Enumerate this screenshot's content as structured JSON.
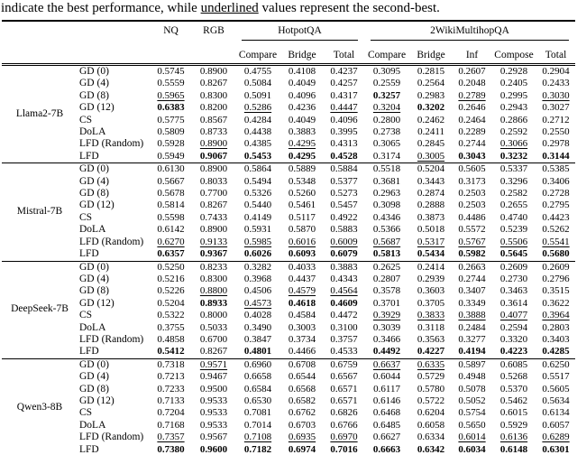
{
  "caption": {
    "before": "indicate the best performance, while ",
    "underlined": "underlined",
    "after": " values represent the second-best."
  },
  "table": {
    "top_headers": [
      {
        "label": "",
        "span": 2,
        "rule": false
      },
      {
        "label": "NQ",
        "span": 1,
        "rule": false
      },
      {
        "label": "RGB",
        "span": 1,
        "rule": false
      },
      {
        "label": "HotpotQA",
        "span": 3,
        "rule": true
      },
      {
        "label": "2WikiMultihopQA",
        "span": 5,
        "rule": true
      }
    ],
    "sub_headers": [
      "Compare",
      "Bridge",
      "Total",
      "Compare",
      "Bridge",
      "Inf",
      "Compose",
      "Total"
    ],
    "style_legend": {
      "b": "bold = best performance",
      "u": "underline = second-best"
    },
    "groups": [
      {
        "model": "Llama2-7B",
        "rows": [
          {
            "method": "GD (0)",
            "values": [
              "0.5745",
              "0.8900",
              "0.4755",
              "0.4108",
              "0.4237",
              "0.3095",
              "0.2815",
              "0.2607",
              "0.2928",
              "0.2904"
            ],
            "styles": [
              "",
              "",
              "",
              "",
              "",
              "",
              "",
              "",
              "",
              ""
            ]
          },
          {
            "method": "GD (4)",
            "values": [
              "0.5559",
              "0.8267",
              "0.5084",
              "0.4049",
              "0.4257",
              "0.2559",
              "0.2564",
              "0.2048",
              "0.2405",
              "0.2433"
            ],
            "styles": [
              "",
              "",
              "",
              "",
              "",
              "",
              "",
              "",
              "",
              ""
            ]
          },
          {
            "method": "GD (8)",
            "values": [
              "0.5965",
              "0.8300",
              "0.5091",
              "0.4096",
              "0.4317",
              "0.3257",
              "0.2983",
              "0.2789",
              "0.2995",
              "0.3030"
            ],
            "styles": [
              "u",
              "",
              "",
              "",
              "",
              "b",
              "",
              "u",
              "",
              "u"
            ]
          },
          {
            "method": "GD (12)",
            "values": [
              "0.6383",
              "0.8200",
              "0.5286",
              "0.4236",
              "0.4447",
              "0.3204",
              "0.3202",
              "0.2646",
              "0.2943",
              "0.3027"
            ],
            "styles": [
              "b",
              "",
              "u",
              "",
              "u",
              "u",
              "b",
              "",
              "",
              ""
            ]
          },
          {
            "method": "CS",
            "values": [
              "0.5775",
              "0.8567",
              "0.4284",
              "0.4049",
              "0.4096",
              "0.2800",
              "0.2462",
              "0.2464",
              "0.2866",
              "0.2712"
            ],
            "styles": [
              "",
              "",
              "",
              "",
              "",
              "",
              "",
              "",
              "",
              ""
            ]
          },
          {
            "method": "DoLA",
            "values": [
              "0.5809",
              "0.8733",
              "0.4438",
              "0.3883",
              "0.3995",
              "0.2738",
              "0.2411",
              "0.2289",
              "0.2592",
              "0.2550"
            ],
            "styles": [
              "",
              "",
              "",
              "",
              "",
              "",
              "",
              "",
              "",
              ""
            ]
          },
          {
            "method": "LFD (Random)",
            "values": [
              "0.5928",
              "0.8900",
              "0.4385",
              "0.4295",
              "0.4313",
              "0.3065",
              "0.2845",
              "0.2744",
              "0.3066",
              "0.2978"
            ],
            "styles": [
              "",
              "u",
              "",
              "u",
              "",
              "",
              "",
              "",
              "u",
              ""
            ]
          },
          {
            "method": "LFD",
            "values": [
              "0.5949",
              "0.9067",
              "0.5453",
              "0.4295",
              "0.4528",
              "0.3174",
              "0.3005",
              "0.3043",
              "0.3232",
              "0.3144"
            ],
            "styles": [
              "",
              "b",
              "b",
              "b",
              "b",
              "",
              "u",
              "b",
              "b",
              "b"
            ]
          }
        ]
      },
      {
        "model": "Mistral-7B",
        "rows": [
          {
            "method": "GD (0)",
            "values": [
              "0.6130",
              "0.8900",
              "0.5864",
              "0.5889",
              "0.5884",
              "0.5518",
              "0.5204",
              "0.5605",
              "0.5337",
              "0.5385"
            ],
            "styles": [
              "",
              "",
              "",
              "",
              "",
              "",
              "",
              "",
              "",
              ""
            ]
          },
          {
            "method": "GD (4)",
            "values": [
              "0.5667",
              "0.8033",
              "0.5494",
              "0.5348",
              "0.5377",
              "0.3681",
              "0.3443",
              "0.3173",
              "0.3296",
              "0.3406"
            ],
            "styles": [
              "",
              "",
              "",
              "",
              "",
              "",
              "",
              "",
              "",
              ""
            ]
          },
          {
            "method": "GD (8)",
            "values": [
              "0.5678",
              "0.7700",
              "0.5326",
              "0.5260",
              "0.5273",
              "0.2963",
              "0.2874",
              "0.2503",
              "0.2582",
              "0.2728"
            ],
            "styles": [
              "",
              "",
              "",
              "",
              "",
              "",
              "",
              "",
              "",
              ""
            ]
          },
          {
            "method": "GD (12)",
            "values": [
              "0.5814",
              "0.8267",
              "0.5440",
              "0.5461",
              "0.5457",
              "0.3098",
              "0.2888",
              "0.2503",
              "0.2655",
              "0.2795"
            ],
            "styles": [
              "",
              "",
              "",
              "",
              "",
              "",
              "",
              "",
              "",
              ""
            ]
          },
          {
            "method": "CS",
            "values": [
              "0.5598",
              "0.7433",
              "0.4149",
              "0.5117",
              "0.4922",
              "0.4346",
              "0.3873",
              "0.4486",
              "0.4740",
              "0.4423"
            ],
            "styles": [
              "",
              "",
              "",
              "",
              "",
              "",
              "",
              "",
              "",
              ""
            ]
          },
          {
            "method": "DoLA",
            "values": [
              "0.6142",
              "0.8900",
              "0.5931",
              "0.5870",
              "0.5883",
              "0.5366",
              "0.5018",
              "0.5572",
              "0.5239",
              "0.5262"
            ],
            "styles": [
              "",
              "",
              "",
              "",
              "",
              "",
              "",
              "",
              "",
              ""
            ]
          },
          {
            "method": "LFD (Random)",
            "values": [
              "0.6270",
              "0.9133",
              "0.5985",
              "0.6016",
              "0.6009",
              "0.5687",
              "0.5317",
              "0.5767",
              "0.5506",
              "0.5541"
            ],
            "styles": [
              "u",
              "u",
              "u",
              "u",
              "u",
              "u",
              "u",
              "u",
              "u",
              "u"
            ]
          },
          {
            "method": "LFD",
            "values": [
              "0.6357",
              "0.9367",
              "0.6026",
              "0.6093",
              "0.6079",
              "0.5813",
              "0.5434",
              "0.5982",
              "0.5645",
              "0.5680"
            ],
            "styles": [
              "b",
              "b",
              "b",
              "b",
              "b",
              "b",
              "b",
              "b",
              "b",
              "b"
            ]
          }
        ]
      },
      {
        "model": "DeepSeek-7B",
        "rows": [
          {
            "method": "GD (0)",
            "values": [
              "0.5250",
              "0.8233",
              "0.3282",
              "0.4033",
              "0.3883",
              "0.2625",
              "0.2414",
              "0.2663",
              "0.2609",
              "0.2609"
            ],
            "styles": [
              "",
              "",
              "",
              "",
              "",
              "",
              "",
              "",
              "",
              ""
            ]
          },
          {
            "method": "GD (4)",
            "values": [
              "0.5216",
              "0.8300",
              "0.3968",
              "0.4437",
              "0.4343",
              "0.2807",
              "0.2939",
              "0.2744",
              "0.2730",
              "0.2796"
            ],
            "styles": [
              "",
              "",
              "",
              "",
              "",
              "",
              "",
              "",
              "",
              ""
            ]
          },
          {
            "method": "GD (8)",
            "values": [
              "0.5226",
              "0.8800",
              "0.4506",
              "0.4579",
              "0.4564",
              "0.3578",
              "0.3603",
              "0.3407",
              "0.3463",
              "0.3515"
            ],
            "styles": [
              "",
              "u",
              "",
              "u",
              "u",
              "",
              "",
              "",
              "",
              ""
            ]
          },
          {
            "method": "GD (12)",
            "values": [
              "0.5204",
              "0.8933",
              "0.4573",
              "0.4618",
              "0.4609",
              "0.3701",
              "0.3705",
              "0.3349",
              "0.3614",
              "0.3622"
            ],
            "styles": [
              "",
              "b",
              "u",
              "b",
              "b",
              "",
              "",
              "",
              "",
              ""
            ]
          },
          {
            "method": "CS",
            "values": [
              "0.5322",
              "0.8000",
              "0.4028",
              "0.4584",
              "0.4472",
              "0.3929",
              "0.3833",
              "0.3888",
              "0.4077",
              "0.3964"
            ],
            "styles": [
              "",
              "",
              "",
              "",
              "",
              "u",
              "u",
              "u",
              "u",
              "u"
            ]
          },
          {
            "method": "DoLA",
            "values": [
              "0.3755",
              "0.5033",
              "0.3490",
              "0.3003",
              "0.3100",
              "0.3039",
              "0.3118",
              "0.2484",
              "0.2594",
              "0.2803"
            ],
            "styles": [
              "",
              "",
              "",
              "",
              "",
              "",
              "",
              "",
              "",
              ""
            ]
          },
          {
            "method": "LFD (Random)",
            "values": [
              "0.4858",
              "0.6700",
              "0.3847",
              "0.3734",
              "0.3757",
              "0.3466",
              "0.3563",
              "0.3277",
              "0.3320",
              "0.3403"
            ],
            "styles": [
              "",
              "",
              "",
              "",
              "",
              "",
              "",
              "",
              "",
              ""
            ]
          },
          {
            "method": "LFD",
            "values": [
              "0.5412",
              "0.8267",
              "0.4801",
              "0.4466",
              "0.4533",
              "0.4492",
              "0.4227",
              "0.4194",
              "0.4223",
              "0.4285"
            ],
            "styles": [
              "b",
              "",
              "b",
              "",
              "",
              "b",
              "b",
              "b",
              "b",
              "b"
            ]
          }
        ]
      },
      {
        "model": "Qwen3-8B",
        "rows": [
          {
            "method": "GD (0)",
            "values": [
              "0.7318",
              "0.9571",
              "0.6960",
              "0.6708",
              "0.6759",
              "0.6637",
              "0.6335",
              "0.5897",
              "0.6085",
              "0.6250"
            ],
            "styles": [
              "",
              "u",
              "",
              "",
              "",
              "u",
              "u",
              "",
              "",
              ""
            ]
          },
          {
            "method": "GD (4)",
            "values": [
              "0.7213",
              "0.9467",
              "0.6658",
              "0.6544",
              "0.6567",
              "0.6044",
              "0.5729",
              "0.4948",
              "0.5268",
              "0.5517"
            ],
            "styles": [
              "",
              "",
              "",
              "",
              "",
              "",
              "",
              "",
              "",
              ""
            ]
          },
          {
            "method": "GD (8)",
            "values": [
              "0.7233",
              "0.9500",
              "0.6584",
              "0.6568",
              "0.6571",
              "0.6117",
              "0.5780",
              "0.5078",
              "0.5370",
              "0.5605"
            ],
            "styles": [
              "",
              "",
              "",
              "",
              "",
              "",
              "",
              "",
              "",
              ""
            ]
          },
          {
            "method": "GD (12)",
            "values": [
              "0.7133",
              "0.9533",
              "0.6530",
              "0.6582",
              "0.6571",
              "0.6146",
              "0.5722",
              "0.5052",
              "0.5462",
              "0.5634"
            ],
            "styles": [
              "",
              "",
              "",
              "",
              "",
              "",
              "",
              "",
              "",
              ""
            ]
          },
          {
            "method": "CS",
            "values": [
              "0.7204",
              "0.9533",
              "0.7081",
              "0.6762",
              "0.6826",
              "0.6468",
              "0.6204",
              "0.5754",
              "0.6015",
              "0.6134"
            ],
            "styles": [
              "",
              "",
              "",
              "",
              "",
              "",
              "",
              "",
              "",
              ""
            ]
          },
          {
            "method": "DoLA",
            "values": [
              "0.7168",
              "0.9533",
              "0.7014",
              "0.6703",
              "0.6766",
              "0.6485",
              "0.6058",
              "0.5650",
              "0.5929",
              "0.6057"
            ],
            "styles": [
              "",
              "",
              "",
              "",
              "",
              "",
              "",
              "",
              "",
              ""
            ]
          },
          {
            "method": "LFD (Random)",
            "values": [
              "0.7357",
              "0.9567",
              "0.7108",
              "0.6935",
              "0.6970",
              "0.6627",
              "0.6334",
              "0.6014",
              "0.6136",
              "0.6289"
            ],
            "styles": [
              "u",
              "",
              "u",
              "u",
              "u",
              "",
              "",
              "u",
              "u",
              "u"
            ]
          },
          {
            "method": "LFD",
            "values": [
              "0.7380",
              "0.9600",
              "0.7182",
              "0.6974",
              "0.7016",
              "0.6663",
              "0.6342",
              "0.6034",
              "0.6148",
              "0.6301"
            ],
            "styles": [
              "b",
              "b",
              "b",
              "b",
              "b",
              "b",
              "b",
              "b",
              "b",
              "b"
            ]
          }
        ]
      }
    ]
  }
}
